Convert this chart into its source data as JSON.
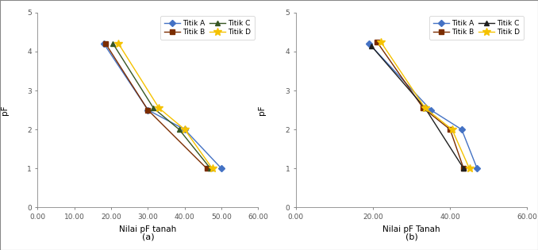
{
  "chart_a": {
    "xlabel": "Nilai pF tanah",
    "ylabel": "pF",
    "xlim": [
      0,
      60
    ],
    "ylim": [
      0,
      5
    ],
    "xticks": [
      0.0,
      10.0,
      20.0,
      30.0,
      40.0,
      50.0,
      60.0
    ],
    "yticks": [
      0,
      1,
      2,
      3,
      4,
      5
    ],
    "series": [
      {
        "label": "Titik A",
        "color": "#4472C4",
        "marker": "D",
        "markersize": 4,
        "x": [
          18.0,
          30.0,
          40.0,
          50.0
        ],
        "y": [
          4.2,
          2.5,
          2.0,
          1.0
        ]
      },
      {
        "label": "Titik B",
        "color": "#7B2D00",
        "marker": "s",
        "markersize": 4,
        "x": [
          18.5,
          30.0,
          46.0
        ],
        "y": [
          4.2,
          2.5,
          1.0
        ]
      },
      {
        "label": "Titik C",
        "color": "#375623",
        "marker": "^",
        "markersize": 5,
        "x": [
          20.5,
          31.5,
          38.5,
          47.0
        ],
        "y": [
          4.2,
          2.55,
          2.0,
          1.0
        ]
      },
      {
        "label": "Titik D",
        "color": "#F5C200",
        "marker": "*",
        "markersize": 7,
        "x": [
          22.0,
          33.0,
          40.0,
          47.5
        ],
        "y": [
          4.2,
          2.55,
          2.0,
          1.0
        ]
      }
    ]
  },
  "chart_b": {
    "xlabel": "Nilai pF Tanah",
    "ylabel": "pF",
    "xlim": [
      0,
      60
    ],
    "ylim": [
      0,
      5
    ],
    "xticks": [
      0.0,
      20.0,
      40.0,
      60.0
    ],
    "yticks": [
      0,
      1,
      2,
      3,
      4,
      5
    ],
    "series": [
      {
        "label": "Titik A",
        "color": "#4472C4",
        "marker": "D",
        "markersize": 4,
        "x": [
          19.0,
          35.0,
          43.0,
          47.0
        ],
        "y": [
          4.2,
          2.5,
          2.0,
          1.0
        ]
      },
      {
        "label": "Titik B",
        "color": "#7B2D00",
        "marker": "s",
        "markersize": 4,
        "x": [
          21.0,
          33.0,
          40.0,
          43.5
        ],
        "y": [
          4.25,
          2.55,
          2.0,
          1.0
        ]
      },
      {
        "label": "Titik C",
        "color": "#1F1F1F",
        "marker": "^",
        "markersize": 5,
        "x": [
          19.5,
          33.5,
          43.5
        ],
        "y": [
          4.15,
          2.55,
          1.0
        ]
      },
      {
        "label": "Titik D",
        "color": "#F5C200",
        "marker": "*",
        "markersize": 7,
        "x": [
          22.0,
          33.5,
          40.5,
          45.0
        ],
        "y": [
          4.25,
          2.55,
          2.0,
          1.0
        ]
      }
    ]
  },
  "legend_fontsize": 6.5,
  "axis_label_fontsize": 7.5,
  "tick_fontsize": 6.5,
  "linewidth": 1.0,
  "bg_color": "#FFFFFF",
  "fig_bg": "#FFFFFF",
  "outer_box_color": "#AAAAAA"
}
